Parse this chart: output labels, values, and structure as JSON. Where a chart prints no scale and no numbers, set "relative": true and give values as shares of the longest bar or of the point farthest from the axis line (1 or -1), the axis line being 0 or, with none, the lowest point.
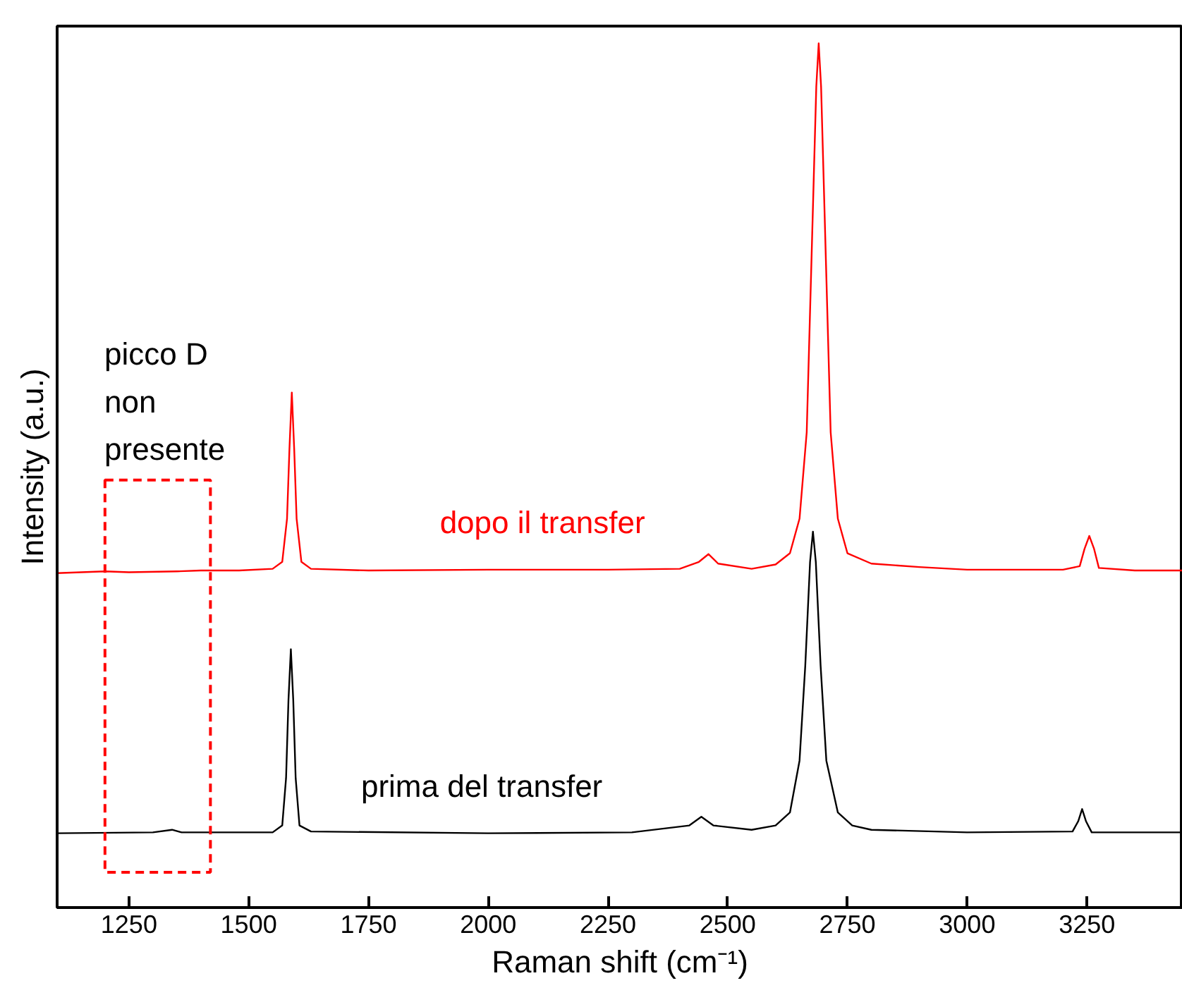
{
  "chart_data": {
    "type": "line",
    "xlabel": "Raman shift (cm⁻¹)",
    "ylabel": "Intensity (a.u.)",
    "relative": true,
    "xlim": [
      1100,
      3450
    ],
    "xticks": [
      1250,
      1500,
      1750,
      2000,
      2250,
      2500,
      2750,
      3000,
      3250
    ],
    "grid": false,
    "line_style": "solid",
    "marker": "none",
    "annotations": [
      "picco D\nnon\npresente"
    ],
    "series": [
      {
        "name": "dopo il transfer",
        "color": "#ff0000",
        "x": [
          1100,
          1200,
          1250,
          1350,
          1400,
          1480,
          1550,
          1570,
          1580,
          1585,
          1590,
          1595,
          1600,
          1610,
          1630,
          1750,
          2000,
          2250,
          2400,
          2440,
          2460,
          2480,
          2550,
          2600,
          2630,
          2650,
          2665,
          2675,
          2685,
          2690,
          2695,
          2705,
          2715,
          2730,
          2750,
          2800,
          2900,
          3000,
          3200,
          3235,
          3245,
          3255,
          3265,
          3275,
          3350,
          3450
        ],
        "values": [
          0.387,
          0.389,
          0.388,
          0.389,
          0.39,
          0.39,
          0.392,
          0.4,
          0.45,
          0.53,
          0.596,
          0.53,
          0.45,
          0.4,
          0.392,
          0.39,
          0.391,
          0.391,
          0.392,
          0.4,
          0.409,
          0.398,
          0.392,
          0.397,
          0.41,
          0.45,
          0.55,
          0.75,
          0.95,
          1.0,
          0.95,
          0.75,
          0.55,
          0.45,
          0.41,
          0.398,
          0.394,
          0.391,
          0.391,
          0.395,
          0.415,
          0.43,
          0.415,
          0.393,
          0.39,
          0.39
        ]
      },
      {
        "name": "prima del transfer",
        "color": "#000000",
        "x": [
          1100,
          1300,
          1340,
          1360,
          1550,
          1570,
          1578,
          1583,
          1588,
          1593,
          1598,
          1606,
          1630,
          2000,
          2300,
          2420,
          2445,
          2470,
          2550,
          2600,
          2630,
          2650,
          2662,
          2672,
          2678,
          2684,
          2694,
          2706,
          2730,
          2760,
          2800,
          3000,
          3220,
          3232,
          3240,
          3248,
          3260,
          3450
        ],
        "values": [
          0.086,
          0.087,
          0.09,
          0.087,
          0.087,
          0.095,
          0.15,
          0.24,
          0.299,
          0.24,
          0.15,
          0.095,
          0.088,
          0.086,
          0.087,
          0.095,
          0.105,
          0.095,
          0.09,
          0.095,
          0.11,
          0.17,
          0.28,
          0.4,
          0.435,
          0.4,
          0.28,
          0.17,
          0.11,
          0.095,
          0.09,
          0.087,
          0.088,
          0.1,
          0.114,
          0.1,
          0.087,
          0.087
        ]
      }
    ]
  }
}
